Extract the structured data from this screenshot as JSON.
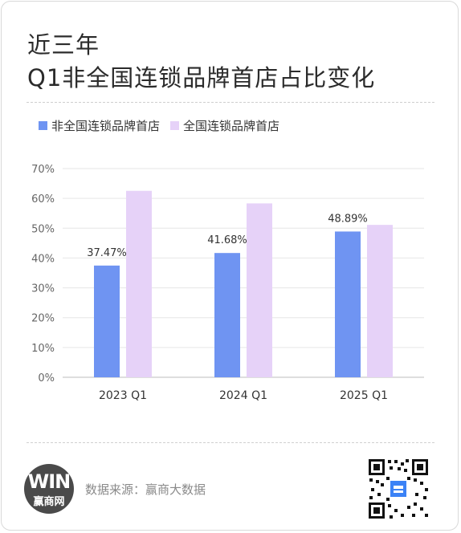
{
  "title_line1": "近三年",
  "title_line2": "Q1非全国连锁品牌首店占比变化",
  "legend": [
    {
      "label": "非全国连锁品牌首店",
      "color": "#6f94f2"
    },
    {
      "label": "全国连锁品牌首店",
      "color": "#e6d2f8"
    }
  ],
  "footer": {
    "source": "数据来源：赢商大数据",
    "logo_mark": "WIN",
    "logo_text": "赢商网"
  },
  "chart_data": {
    "type": "bar",
    "categories": [
      "2023 Q1",
      "2024 Q1",
      "2025 Q1"
    ],
    "series": [
      {
        "name": "非全国连锁品牌首店",
        "values": [
          37.47,
          41.68,
          48.89
        ],
        "labels": [
          "37.47%",
          "41.68%",
          "48.89%"
        ],
        "color": "#6f94f2"
      },
      {
        "name": "全国连锁品牌首店",
        "values": [
          62.53,
          58.32,
          51.11
        ],
        "color": "#e6d2f8"
      }
    ],
    "ylim": [
      0,
      70
    ],
    "yticks": [
      "0%",
      "10%",
      "20%",
      "30%",
      "40%",
      "50%",
      "60%",
      "70%"
    ],
    "grid": true,
    "legend_position": "top-left"
  }
}
